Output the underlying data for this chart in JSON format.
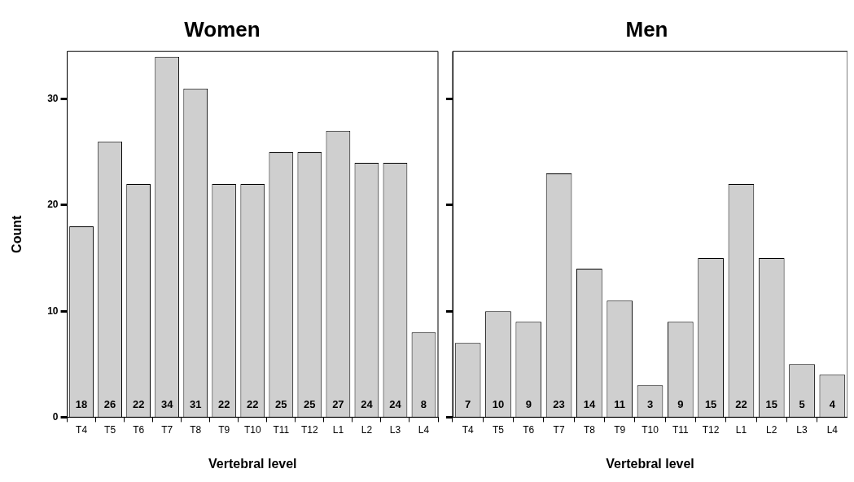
{
  "chart_data": [
    {
      "type": "bar",
      "title": "Women",
      "xlabel": "Vertebral level",
      "ylabel": "Count",
      "categories": [
        "T4",
        "T5",
        "T6",
        "T7",
        "T8",
        "T9",
        "T10",
        "T11",
        "T12",
        "L1",
        "L2",
        "L3",
        "L4"
      ],
      "values": [
        18,
        26,
        22,
        34,
        31,
        22,
        22,
        25,
        25,
        27,
        24,
        24,
        8
      ],
      "color": "#cfcfcf",
      "ylim": [
        0,
        34.5
      ],
      "yticks": [
        0,
        10,
        20,
        30
      ],
      "grid": false,
      "data_labels": true
    },
    {
      "type": "bar",
      "title": "Men",
      "xlabel": "Vertebral level",
      "categories": [
        "T4",
        "T5",
        "T6",
        "T7",
        "T8",
        "T9",
        "T10",
        "T11",
        "T12",
        "L1",
        "L2",
        "L3",
        "L4"
      ],
      "values": [
        7,
        10,
        9,
        23,
        14,
        11,
        3,
        9,
        15,
        22,
        15,
        5,
        4
      ],
      "color": "#cfcfcf",
      "ylim": [
        0,
        34.5
      ],
      "yticks": [
        0,
        10,
        20,
        30
      ],
      "grid": false,
      "data_labels": true,
      "tick_labels": "x"
    }
  ]
}
